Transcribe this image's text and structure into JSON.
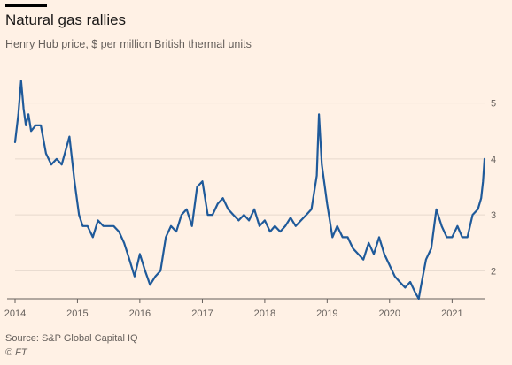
{
  "chart_data": {
    "type": "line",
    "title": "Natural gas rallies",
    "subtitle": "Henry Hub price, $ per million British thermal units",
    "xlabel": "",
    "ylabel": "",
    "x_ticks": [
      "2014",
      "2015",
      "2016",
      "2017",
      "2018",
      "2019",
      "2020",
      "2021"
    ],
    "y_ticks": [
      2,
      3,
      4,
      5
    ],
    "xlim": [
      "2014-01-01",
      "2021-07-15"
    ],
    "ylim": [
      1.5,
      5.5
    ],
    "grid": true,
    "line_color": "#1f5a9a",
    "series": [
      {
        "name": "",
        "x": [
          "2014-01-01",
          "2014-01-20",
          "2014-02-05",
          "2014-02-20",
          "2014-03-05",
          "2014-03-20",
          "2014-04-05",
          "2014-05-01",
          "2014-06-01",
          "2014-07-01",
          "2014-08-01",
          "2014-09-01",
          "2014-10-01",
          "2014-11-15",
          "2014-12-15",
          "2015-01-10",
          "2015-02-01",
          "2015-03-01",
          "2015-04-01",
          "2015-05-01",
          "2015-06-01",
          "2015-07-01",
          "2015-08-01",
          "2015-09-01",
          "2015-10-01",
          "2015-11-01",
          "2015-12-01",
          "2016-01-01",
          "2016-02-01",
          "2016-03-01",
          "2016-04-01",
          "2016-05-01",
          "2016-06-01",
          "2016-07-01",
          "2016-08-01",
          "2016-09-01",
          "2016-10-01",
          "2016-11-01",
          "2016-12-01",
          "2017-01-01",
          "2017-02-01",
          "2017-03-01",
          "2017-04-01",
          "2017-05-01",
          "2017-06-01",
          "2017-07-01",
          "2017-08-01",
          "2017-09-01",
          "2017-10-01",
          "2017-11-01",
          "2017-12-01",
          "2018-01-01",
          "2018-02-01",
          "2018-03-01",
          "2018-04-01",
          "2018-05-01",
          "2018-06-01",
          "2018-07-01",
          "2018-08-01",
          "2018-09-01",
          "2018-10-01",
          "2018-11-01",
          "2018-11-14",
          "2018-12-01",
          "2019-01-01",
          "2019-02-01",
          "2019-03-01",
          "2019-04-01",
          "2019-05-01",
          "2019-06-01",
          "2019-07-01",
          "2019-08-01",
          "2019-09-01",
          "2019-10-01",
          "2019-11-01",
          "2019-12-01",
          "2020-01-01",
          "2020-02-01",
          "2020-03-01",
          "2020-04-01",
          "2020-05-01",
          "2020-06-01",
          "2020-06-20",
          "2020-07-01",
          "2020-08-01",
          "2020-09-01",
          "2020-10-01",
          "2020-11-01",
          "2020-12-01",
          "2021-01-01",
          "2021-02-01",
          "2021-03-01",
          "2021-04-01",
          "2021-05-01",
          "2021-06-01",
          "2021-06-20",
          "2021-07-01",
          "2021-07-10"
        ],
        "y": [
          4.3,
          4.8,
          5.4,
          4.9,
          4.6,
          4.8,
          4.5,
          4.6,
          4.6,
          4.1,
          3.9,
          4.0,
          3.9,
          4.4,
          3.6,
          3.0,
          2.8,
          2.8,
          2.6,
          2.9,
          2.8,
          2.8,
          2.8,
          2.7,
          2.5,
          2.2,
          1.9,
          2.3,
          2.0,
          1.75,
          1.9,
          2.0,
          2.6,
          2.8,
          2.7,
          3.0,
          3.1,
          2.8,
          3.5,
          3.6,
          3.0,
          3.0,
          3.2,
          3.3,
          3.1,
          3.0,
          2.9,
          3.0,
          2.9,
          3.1,
          2.8,
          2.9,
          2.7,
          2.8,
          2.7,
          2.8,
          2.95,
          2.8,
          2.9,
          3.0,
          3.1,
          3.7,
          4.8,
          3.9,
          3.2,
          2.6,
          2.8,
          2.6,
          2.6,
          2.4,
          2.3,
          2.2,
          2.5,
          2.3,
          2.6,
          2.3,
          2.1,
          1.9,
          1.8,
          1.7,
          1.8,
          1.6,
          1.5,
          1.7,
          2.2,
          2.4,
          3.1,
          2.8,
          2.6,
          2.6,
          2.8,
          2.6,
          2.6,
          3.0,
          3.1,
          3.3,
          3.6,
          4.0
        ]
      }
    ]
  },
  "source_text": "Source: S&P Global Capital IQ",
  "credit_text": "© FT"
}
